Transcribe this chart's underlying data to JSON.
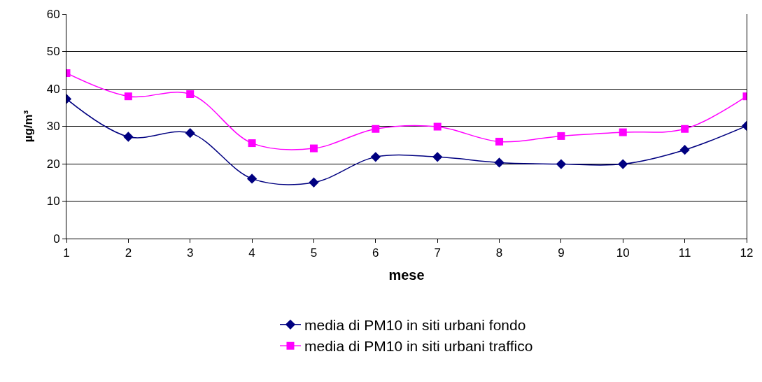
{
  "chart_data": {
    "type": "line",
    "xlabel": "mese",
    "ylabel": "µg/m³",
    "x": [
      1,
      2,
      3,
      4,
      5,
      6,
      7,
      8,
      9,
      10,
      11,
      12
    ],
    "series": [
      {
        "name": "media di PM10 in siti urbani fondo",
        "color": "#000080",
        "marker": "diamond",
        "values": [
          37.3,
          27.2,
          28.2,
          16,
          15,
          21.8,
          21.8,
          20.3,
          19.9,
          19.9,
          23.7,
          30.1
        ]
      },
      {
        "name": "media di PM10 in siti urbani traffico",
        "color": "#ff00ff",
        "marker": "square",
        "values": [
          44.2,
          38,
          38.6,
          25.5,
          24.1,
          29.3,
          29.9,
          25.9,
          27.4,
          28.4,
          29.3,
          38
        ]
      }
    ],
    "xlim": [
      1,
      12
    ],
    "xticks": [
      1,
      2,
      3,
      4,
      5,
      6,
      7,
      8,
      9,
      10,
      11,
      12
    ],
    "ylim": [
      0,
      60
    ],
    "yticks": [
      0,
      10,
      20,
      30,
      40,
      50,
      60
    ],
    "grid": "y",
    "legend": "bottom"
  }
}
